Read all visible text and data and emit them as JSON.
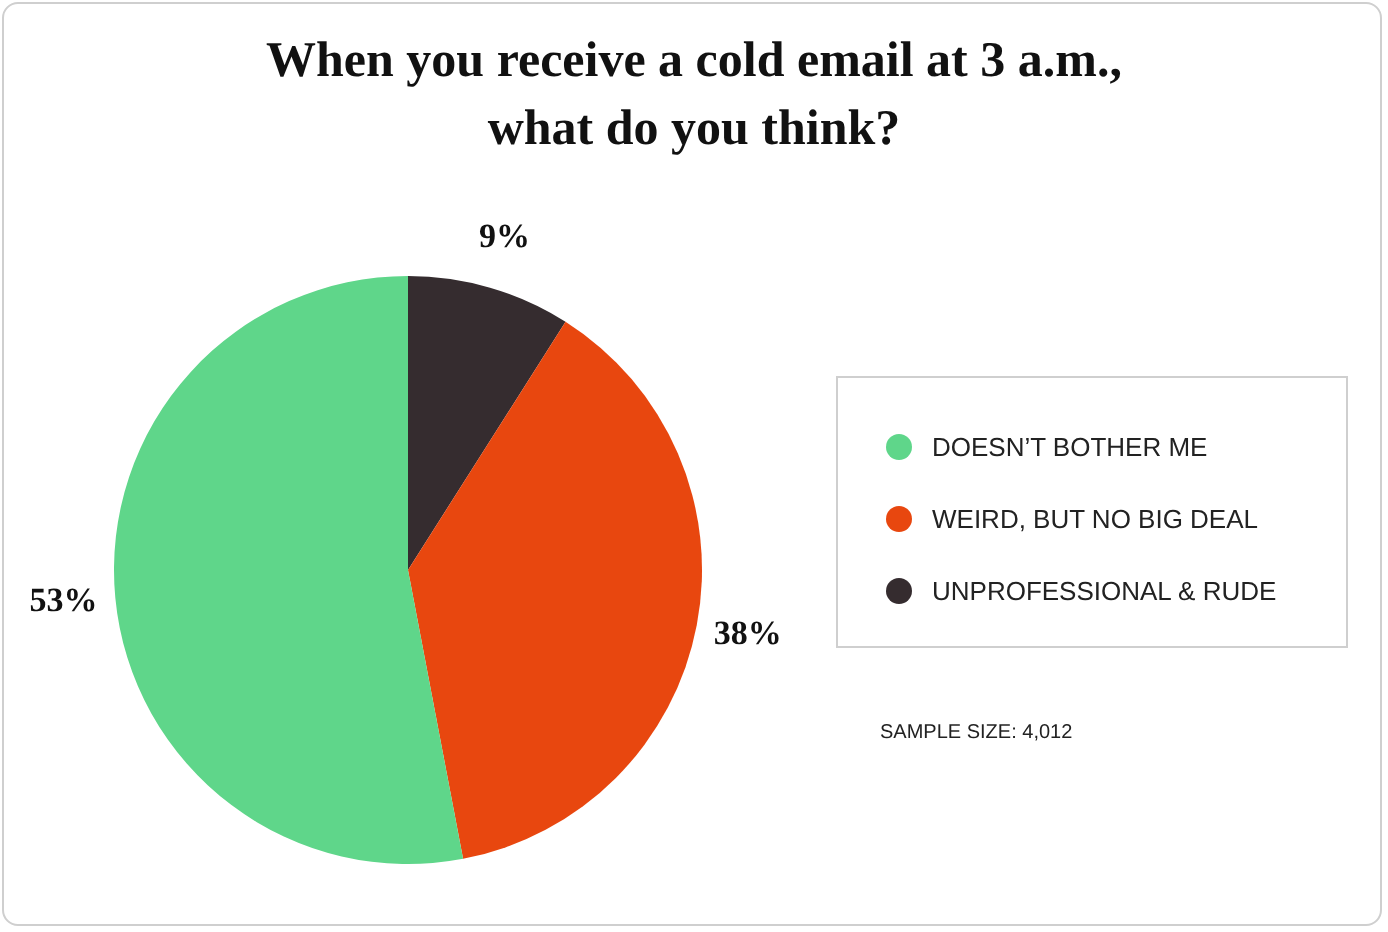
{
  "chart_data": {
    "type": "pie",
    "title": "When you receive a cold email at 3 a.m.,\nwhat do you think?",
    "categories": [
      "DOESN’T BOTHER ME",
      "WEIRD, BUT NO BIG DEAL",
      "UNPROFESSIONAL & RUDE"
    ],
    "values": [
      53,
      38,
      9
    ],
    "colors": [
      "#5fd68a",
      "#e8470f",
      "#352c2f"
    ],
    "value_labels": [
      "53%",
      "38%",
      "9%"
    ],
    "legend": "right",
    "annotations": [
      "SAMPLE SIZE: 4,012"
    ]
  }
}
